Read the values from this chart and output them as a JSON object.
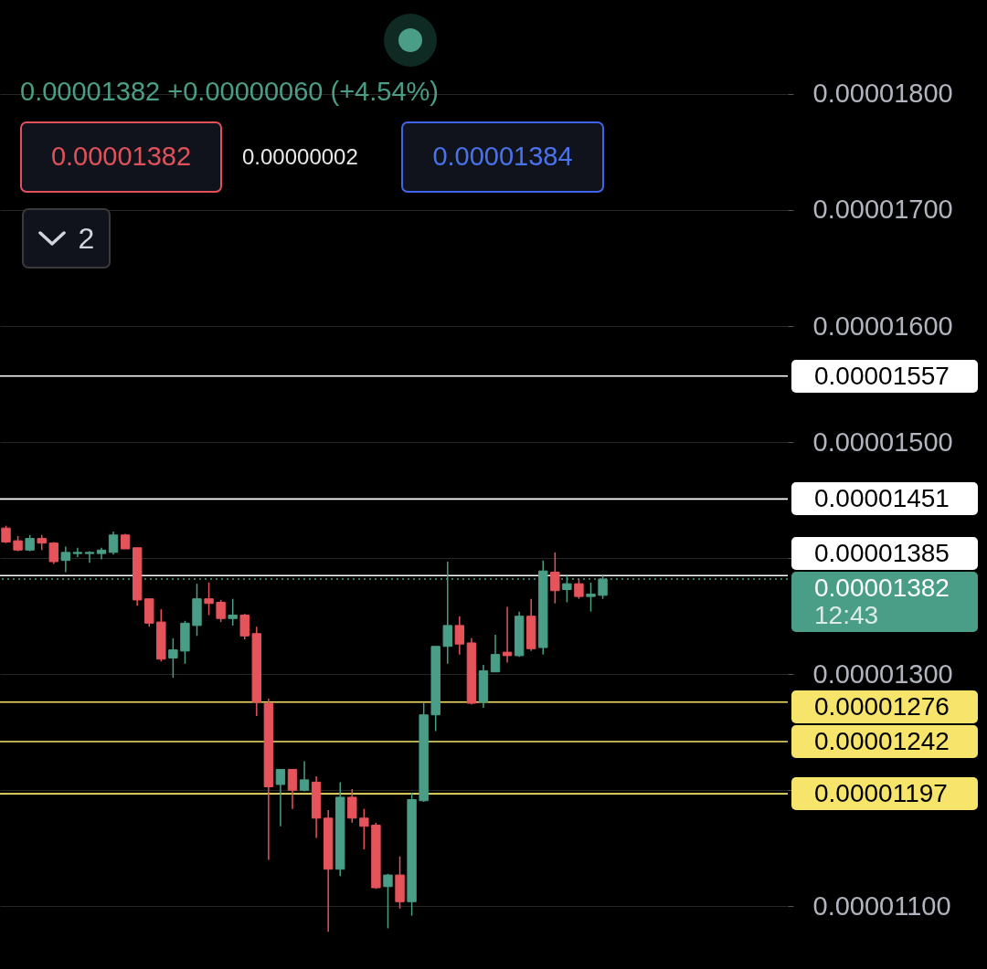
{
  "chart_data": {
    "type": "candlestick",
    "subtitle": "0.00001382 +0.00000060 (+4.54%)",
    "annotations": [
      "0.00001382",
      "0.00000002",
      "0.00001384",
      "2"
    ],
    "categories": [
      null,
      null,
      null,
      null,
      null,
      null,
      null,
      null,
      null,
      null,
      null,
      null,
      null,
      null,
      null,
      null,
      null,
      null,
      null,
      null,
      null,
      null,
      null,
      null,
      null,
      null,
      null,
      null,
      null,
      null,
      null,
      null,
      null,
      null,
      null,
      null,
      null,
      null,
      null,
      null,
      null,
      null,
      null,
      null,
      null,
      null,
      null,
      null,
      null,
      null,
      null,
      null,
      null,
      null,
      null,
      null,
      null,
      null,
      null,
      null,
      null,
      null,
      null,
      null,
      null,
      null
    ],
    "ohlc": [
      [
        1.426e-05,
        1.428e-05,
        1.413e-05,
        1.414e-05
      ],
      [
        1.415e-05,
        1.419e-05,
        1.406e-05,
        1.407e-05
      ],
      [
        1.407e-05,
        1.42e-05,
        1.406e-05,
        1.417e-05
      ],
      [
        1.417e-05,
        1.42e-05,
        1.407e-05,
        1.413e-05
      ],
      [
        1.413e-05,
        1.414e-05,
        1.395e-05,
        1.397e-05
      ],
      [
        1.398e-05,
        1.41e-05,
        1.388e-05,
        1.405e-05
      ],
      [
        1.404e-05,
        1.409e-05,
        1.401e-05,
        1.405e-05
      ],
      [
        1.404e-05,
        1.406e-05,
        1.396e-05,
        1.405e-05
      ],
      [
        1.404e-05,
        1.409e-05,
        1.399e-05,
        1.407e-05
      ],
      [
        1.405e-05,
        1.423e-05,
        1.403e-05,
        1.42e-05
      ],
      [
        1.42e-05,
        1.421e-05,
        1.408e-05,
        1.408e-05
      ],
      [
        1.409e-05,
        1.409e-05,
        1.359e-05,
        1.364e-05
      ],
      [
        1.365e-05,
        1.365e-05,
        1.341e-05,
        1.344e-05
      ],
      [
        1.345e-05,
        1.356e-05,
        1.311e-05,
        1.313e-05
      ],
      [
        1.314e-05,
        1.331e-05,
        1.297e-05,
        1.321e-05
      ],
      [
        1.32e-05,
        1.346e-05,
        1.309e-05,
        1.344e-05
      ],
      [
        1.342e-05,
        1.378e-05,
        1.333e-05,
        1.365e-05
      ],
      [
        1.365e-05,
        1.379e-05,
        1.351e-05,
        1.361e-05
      ],
      [
        1.362e-05,
        1.364e-05,
        1.345e-05,
        1.348e-05
      ],
      [
        1.348e-05,
        1.365e-05,
        1.342e-05,
        1.351e-05
      ],
      [
        1.351e-05,
        1.352e-05,
        1.33e-05,
        1.333e-05
      ],
      [
        1.335e-05,
        1.341e-05,
        1.264e-05,
        1.276e-05
      ],
      [
        1.275e-05,
        1.279e-05,
        1.14e-05,
        1.203e-05
      ],
      [
        1.205e-05,
        1.218e-05,
        1.169e-05,
        1.218e-05
      ],
      [
        1.218e-05,
        1.218e-05,
        1.184e-05,
        1.2e-05
      ],
      [
        1.2e-05,
        1.225e-05,
        1.199e-05,
        1.209e-05
      ],
      [
        1.207e-05,
        1.212e-05,
        1.159e-05,
        1.176e-05
      ],
      [
        1.176e-05,
        1.183e-05,
        1.078e-05,
        1.132e-05
      ],
      [
        1.132e-05,
        1.207e-05,
        1.126e-05,
        1.194e-05
      ],
      [
        1.194e-05,
        1.201e-05,
        1.172e-05,
        1.176e-05
      ],
      [
        1.176e-05,
        1.184e-05,
        1.149e-05,
        1.169e-05
      ],
      [
        1.17e-05,
        1.172e-05,
        1.115e-05,
        1.116e-05
      ],
      [
        1.117e-05,
        1.128e-05,
        1.081e-05,
        1.127e-05
      ],
      [
        1.127e-05,
        1.143e-05,
        1.098e-05,
        1.104e-05
      ],
      [
        1.104e-05,
        1.198e-05,
        1.092e-05,
        1.192e-05
      ],
      [
        1.191e-05,
        1.275e-05,
        1.19e-05,
        1.265e-05
      ],
      [
        1.265e-05,
        1.324e-05,
        1.251e-05,
        1.324e-05
      ],
      [
        1.324e-05,
        1.397e-05,
        1.309e-05,
        1.342e-05
      ],
      [
        1.342e-05,
        1.35e-05,
        1.317e-05,
        1.326e-05
      ],
      [
        1.327e-05,
        1.331e-05,
        1.274e-05,
        1.275e-05
      ],
      [
        1.276e-05,
        1.308e-05,
        1.271e-05,
        1.303e-05
      ],
      [
        1.302e-05,
        1.334e-05,
        1.302e-05,
        1.317e-05
      ],
      [
        1.319e-05,
        1.358e-05,
        1.31e-05,
        1.316e-05
      ],
      [
        1.316e-05,
        1.354e-05,
        1.315e-05,
        1.35e-05
      ],
      [
        1.35e-05,
        1.365e-05,
        1.32e-05,
        1.322e-05
      ],
      [
        1.323e-05,
        1.398e-05,
        1.317e-05,
        1.389e-05
      ],
      [
        1.388e-05,
        1.405e-05,
        1.361e-05,
        1.372e-05
      ],
      [
        1.373e-05,
        1.385e-05,
        1.362e-05,
        1.378e-05
      ],
      [
        1.378e-05,
        1.382e-05,
        1.365e-05,
        1.367e-05
      ],
      [
        1.367e-05,
        1.379e-05,
        1.354e-05,
        1.369e-05
      ],
      [
        1.368e-05,
        1.385e-05,
        1.365e-05,
        1.382e-05
      ],
      null,
      null,
      null,
      null,
      null,
      null,
      null,
      null,
      null,
      null,
      null,
      null,
      null,
      null,
      null
    ],
    "colors": [
      "#e5535b",
      "#e5535b",
      "#4a9d86",
      "#e5535b",
      "#e5535b",
      "#4a9d86",
      "#4a9d86",
      "#4a9d86",
      "#4a9d86",
      "#4a9d86",
      "#e5535b",
      "#e5535b",
      "#e5535b",
      "#e5535b",
      "#4a9d86",
      "#4a9d86",
      "#4a9d86",
      "#e5535b",
      "#e5535b",
      "#4a9d86",
      "#e5535b",
      "#e5535b",
      "#e5535b",
      "#4a9d86",
      "#e5535b",
      "#4a9d86",
      "#e5535b",
      "#e5535b",
      "#4a9d86",
      "#e5535b",
      "#e5535b",
      "#e5535b",
      "#4a9d86",
      "#e5535b",
      "#4a9d86",
      "#4a9d86",
      "#4a9d86",
      "#4a9d86",
      "#e5535b",
      "#e5535b",
      "#4a9d86",
      "#4a9d86",
      "#e5535b",
      "#4a9d86",
      "#e5535b",
      "#4a9d86",
      "#e5535b",
      "#4a9d86",
      "#e5535b",
      "#4a9d86",
      "#4a9d86",
      null,
      null,
      null,
      null,
      null,
      null,
      null,
      null,
      null,
      null,
      null,
      null,
      null,
      null,
      null
    ],
    "ylim": [
      1.046e-05,
      1.881e-05
    ],
    "yticks": [
      {
        "value": 1.1e-05,
        "label": "0.00001100"
      },
      {
        "value": 1.2e-05,
        "label": null
      },
      {
        "value": 1.3e-05,
        "label": "0.00001300"
      },
      {
        "value": 1.4e-05,
        "label": null
      },
      {
        "value": 1.5e-05,
        "label": "0.00001500"
      },
      {
        "value": 1.6e-05,
        "label": "0.00001600"
      },
      {
        "value": 1.7e-05,
        "label": "0.00001700"
      },
      {
        "value": 1.8e-05,
        "label": "0.00001800"
      }
    ],
    "ref_lines": [
      {
        "axis": "y",
        "value": 1.557e-05,
        "label": "0.00001557",
        "color": "#ffffff",
        "line_style": "solid"
      },
      {
        "axis": "y",
        "value": 1.451e-05,
        "label": "0.00001451",
        "color": "#ffffff",
        "line_style": "solid"
      },
      {
        "axis": "y",
        "value": 1.385e-05,
        "label": "0.00001385",
        "color": "#ffffff",
        "line_style": "solid"
      },
      {
        "axis": "y",
        "value": 1.382e-05,
        "label": "0.00001382\n12:43",
        "color": "#4a9d86",
        "line_style": "dotted"
      },
      {
        "axis": "y",
        "value": 1.276e-05,
        "label": "0.00001276",
        "color": "#f7e46a",
        "line_style": "solid"
      },
      {
        "axis": "y",
        "value": 1.242e-05,
        "label": "0.00001242",
        "color": "#f7e46a",
        "line_style": "solid"
      },
      {
        "axis": "y",
        "value": 1.197e-05,
        "label": "0.00001197",
        "color": "#f7e46a",
        "line_style": "solid"
      }
    ],
    "grid": "y",
    "tick_labels": "y"
  }
}
